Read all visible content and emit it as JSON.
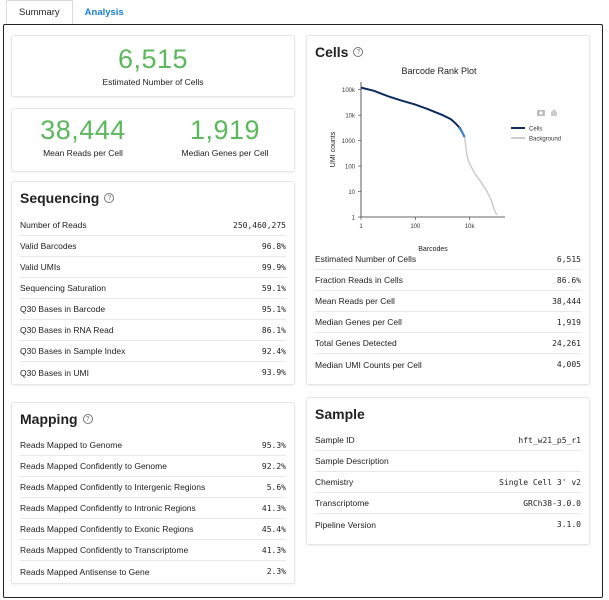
{
  "tabs": [
    {
      "label": "Summary",
      "active": true
    },
    {
      "label": "Analysis",
      "active": false
    }
  ],
  "cells_estimate": {
    "value": "6,515",
    "label": "Estimated Number of Cells"
  },
  "reads_genes": {
    "mean_reads": {
      "value": "38,444",
      "label": "Mean Reads per Cell"
    },
    "median_genes": {
      "value": "1,919",
      "label": "Median Genes per Cell"
    }
  },
  "sequencing": {
    "title": "Sequencing",
    "rows": [
      {
        "label": "Number of Reads",
        "value": "250,460,275"
      },
      {
        "label": "Valid Barcodes",
        "value": "96.8%"
      },
      {
        "label": "Valid UMIs",
        "value": "99.9%"
      },
      {
        "label": "Sequencing Saturation",
        "value": "59.1%"
      },
      {
        "label": "Q30 Bases in Barcode",
        "value": "95.1%"
      },
      {
        "label": "Q30 Bases in RNA Read",
        "value": "86.1%"
      },
      {
        "label": "Q30 Bases in Sample Index",
        "value": "92.4%"
      },
      {
        "label": "Q30 Bases in UMI",
        "value": "93.9%"
      }
    ]
  },
  "mapping": {
    "title": "Mapping",
    "rows": [
      {
        "label": "Reads Mapped to Genome",
        "value": "95.3%"
      },
      {
        "label": "Reads Mapped Confidently to Genome",
        "value": "92.2%"
      },
      {
        "label": "Reads Mapped Confidently to Intergenic Regions",
        "value": "5.6%"
      },
      {
        "label": "Reads Mapped Confidently to Intronic Regions",
        "value": "41.3%"
      },
      {
        "label": "Reads Mapped Confidently to Exonic Regions",
        "value": "45.4%"
      },
      {
        "label": "Reads Mapped Confidently to Transcriptome",
        "value": "41.3%"
      },
      {
        "label": "Reads Mapped Antisense to Gene",
        "value": "2.3%"
      }
    ]
  },
  "cells": {
    "title": "Cells",
    "rows": [
      {
        "label": "Estimated Number of Cells",
        "value": "6,515"
      },
      {
        "label": "Fraction Reads in Cells",
        "value": "86.6%"
      },
      {
        "label": "Mean Reads per Cell",
        "value": "38,444"
      },
      {
        "label": "Median Genes per Cell",
        "value": "1,919"
      },
      {
        "label": "Total Genes Detected",
        "value": "24,261"
      },
      {
        "label": "Median UMI Counts per Cell",
        "value": "4,005"
      }
    ]
  },
  "sample": {
    "title": "Sample",
    "rows": [
      {
        "label": "Sample ID",
        "value": "hft_w21_p5_r1"
      },
      {
        "label": "Sample Description",
        "value": ""
      },
      {
        "label": "Chemistry",
        "value": "Single Cell 3' v2"
      },
      {
        "label": "Transcriptome",
        "value": "GRCh38-3.0.0"
      },
      {
        "label": "Pipeline Version",
        "value": "3.1.0"
      }
    ]
  },
  "icons": {
    "camera": "camera-icon",
    "home": "home-icon",
    "help": "help-icon"
  },
  "chart_data": {
    "type": "line",
    "title": "Barcode Rank Plot",
    "xlabel": "Barcodes",
    "ylabel": "UMI counts",
    "xscale": "log",
    "yscale": "log",
    "xlim": [
      1,
      200000
    ],
    "ylim": [
      1,
      200000
    ],
    "x_ticks": [
      {
        "v": 1,
        "label": "1"
      },
      {
        "v": 100,
        "label": "100"
      },
      {
        "v": 10000,
        "label": "10k"
      }
    ],
    "y_ticks": [
      {
        "v": 1,
        "label": "1"
      },
      {
        "v": 10,
        "label": "10"
      },
      {
        "v": 100,
        "label": "100"
      },
      {
        "v": 1000,
        "label": "1000"
      },
      {
        "v": 10000,
        "label": "10k"
      },
      {
        "v": 100000,
        "label": "100k"
      }
    ],
    "legend_position": "top-right",
    "series": [
      {
        "name": "Cells",
        "color": "#0d2b5e",
        "points": [
          [
            1,
            120000
          ],
          [
            3,
            90000
          ],
          [
            10,
            55000
          ],
          [
            30,
            38000
          ],
          [
            100,
            26000
          ],
          [
            300,
            17000
          ],
          [
            1000,
            10000
          ],
          [
            2000,
            7000
          ],
          [
            3000,
            4800
          ],
          [
            4500,
            3000
          ],
          [
            6515,
            1400
          ]
        ]
      },
      {
        "name": "Background",
        "color": "#cccccc",
        "points": [
          [
            6515,
            1400
          ],
          [
            8000,
            250
          ],
          [
            10000,
            120
          ],
          [
            15000,
            55
          ],
          [
            25000,
            25
          ],
          [
            40000,
            12
          ],
          [
            60000,
            5
          ],
          [
            80000,
            2
          ],
          [
            100000,
            1.2
          ]
        ]
      }
    ],
    "mixed_band": {
      "color": "#3d86c6",
      "points": [
        [
          4000,
          3300
        ],
        [
          5000,
          2400
        ],
        [
          6515,
          1400
        ]
      ]
    }
  }
}
